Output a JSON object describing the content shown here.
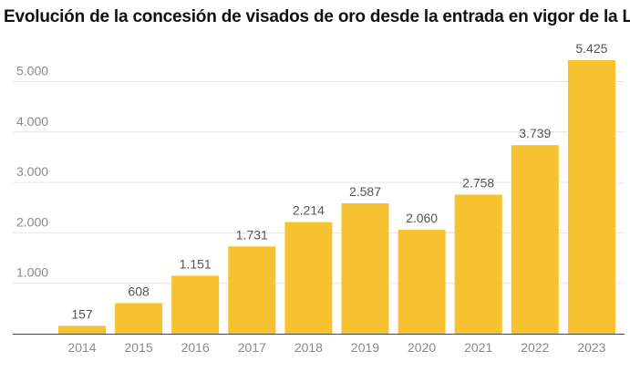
{
  "chart_data": {
    "type": "bar",
    "title": "Evolución de la concesión de visados de oro desde la entrada en vigor de la Ley",
    "categories": [
      "2014",
      "2015",
      "2016",
      "2017",
      "2018",
      "2019",
      "2020",
      "2021",
      "2022",
      "2023"
    ],
    "values": [
      157,
      608,
      1151,
      1731,
      2214,
      2587,
      2060,
      2758,
      3739,
      5425
    ],
    "value_labels": [
      "157",
      "608",
      "1.151",
      "1.731",
      "2.214",
      "2.587",
      "2.060",
      "2.758",
      "3.739",
      "5.425"
    ],
    "yticks": [
      1000,
      2000,
      3000,
      4000,
      5000
    ],
    "ytick_labels": [
      "1.000",
      "2.000",
      "3.000",
      "4.000",
      "5.000"
    ],
    "ylim": [
      0,
      5425
    ],
    "xlabel": "",
    "ylabel": "",
    "grid": true,
    "bar_color": "#F7C22F",
    "grid_color": "#e6e6e6"
  }
}
